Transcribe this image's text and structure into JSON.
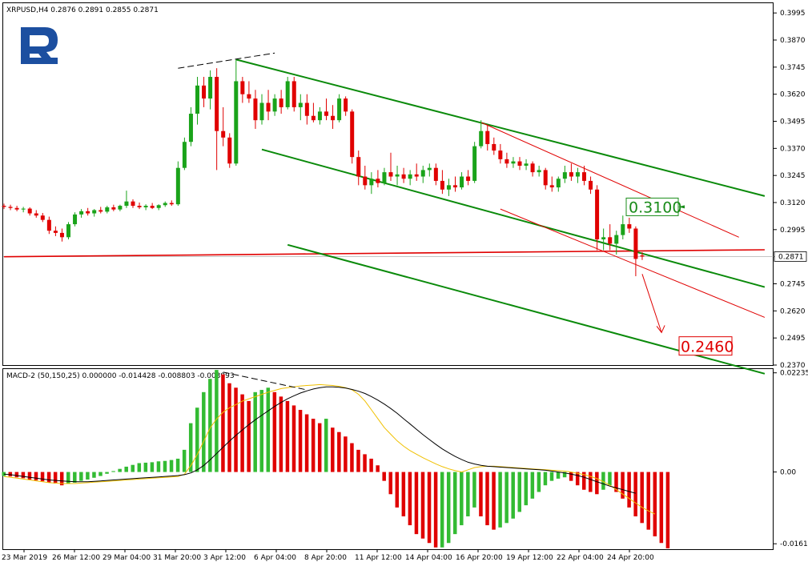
{
  "chart_data": [
    {
      "type": "candlestick",
      "title": "XRPUSD,H4",
      "ohlc_header": [
        "0.2876",
        "0.2891",
        "0.2855",
        "0.2871"
      ],
      "logo": "R",
      "ylim": [
        0.237,
        0.404
      ],
      "y_ticks": [
        "0.3995",
        "0.3870",
        "0.3745",
        "0.3620",
        "0.3495",
        "0.3370",
        "0.3245",
        "0.3120",
        "0.2995",
        "0.2870",
        "0.2745",
        "0.2620",
        "0.2495",
        "0.2370"
      ],
      "current_price": "0.2871",
      "annotations": [
        {
          "text": "0.3100",
          "value": 0.31,
          "color": "#1a8c1a"
        },
        {
          "text": "0.2460",
          "value": 0.246,
          "color": "#e00000"
        }
      ],
      "colors": {
        "bull": "#1aa31a",
        "bear": "#e00000",
        "channel": "#0a8a0a",
        "trend": "#e00000"
      },
      "candles": [
        {
          "o": 0.3105,
          "h": 0.3115,
          "l": 0.309,
          "c": 0.31
        },
        {
          "o": 0.31,
          "h": 0.311,
          "l": 0.3085,
          "c": 0.3095
        },
        {
          "o": 0.3095,
          "h": 0.3105,
          "l": 0.308,
          "c": 0.3088
        },
        {
          "o": 0.3088,
          "h": 0.31,
          "l": 0.3075,
          "c": 0.3092
        },
        {
          "o": 0.3092,
          "h": 0.3098,
          "l": 0.306,
          "c": 0.307
        },
        {
          "o": 0.307,
          "h": 0.3085,
          "l": 0.305,
          "c": 0.306
        },
        {
          "o": 0.306,
          "h": 0.3072,
          "l": 0.303,
          "c": 0.304
        },
        {
          "o": 0.304,
          "h": 0.3055,
          "l": 0.2975,
          "c": 0.299
        },
        {
          "o": 0.299,
          "h": 0.301,
          "l": 0.2965,
          "c": 0.298
        },
        {
          "o": 0.298,
          "h": 0.3,
          "l": 0.294,
          "c": 0.296
        },
        {
          "o": 0.296,
          "h": 0.303,
          "l": 0.295,
          "c": 0.302
        },
        {
          "o": 0.302,
          "h": 0.3075,
          "l": 0.301,
          "c": 0.3065
        },
        {
          "o": 0.3065,
          "h": 0.309,
          "l": 0.305,
          "c": 0.308
        },
        {
          "o": 0.308,
          "h": 0.3095,
          "l": 0.306,
          "c": 0.307
        },
        {
          "o": 0.307,
          "h": 0.309,
          "l": 0.3055,
          "c": 0.3085
        },
        {
          "o": 0.3085,
          "h": 0.31,
          "l": 0.307,
          "c": 0.3078
        },
        {
          "o": 0.3078,
          "h": 0.3105,
          "l": 0.307,
          "c": 0.3098
        },
        {
          "o": 0.3098,
          "h": 0.311,
          "l": 0.308,
          "c": 0.3088
        },
        {
          "o": 0.3088,
          "h": 0.311,
          "l": 0.308,
          "c": 0.3105
        },
        {
          "o": 0.3105,
          "h": 0.3175,
          "l": 0.3095,
          "c": 0.3125
        },
        {
          "o": 0.3125,
          "h": 0.3135,
          "l": 0.3095,
          "c": 0.3105
        },
        {
          "o": 0.3105,
          "h": 0.312,
          "l": 0.309,
          "c": 0.3098
        },
        {
          "o": 0.3098,
          "h": 0.3112,
          "l": 0.3085,
          "c": 0.3105
        },
        {
          "o": 0.3105,
          "h": 0.3118,
          "l": 0.309,
          "c": 0.3095
        },
        {
          "o": 0.3095,
          "h": 0.3112,
          "l": 0.3085,
          "c": 0.3108
        },
        {
          "o": 0.3108,
          "h": 0.3125,
          "l": 0.31,
          "c": 0.3118
        },
        {
          "o": 0.3118,
          "h": 0.313,
          "l": 0.3105,
          "c": 0.3112
        },
        {
          "o": 0.3112,
          "h": 0.331,
          "l": 0.3105,
          "c": 0.328
        },
        {
          "o": 0.328,
          "h": 0.342,
          "l": 0.327,
          "c": 0.34
        },
        {
          "o": 0.34,
          "h": 0.356,
          "l": 0.338,
          "c": 0.353
        },
        {
          "o": 0.353,
          "h": 0.37,
          "l": 0.348,
          "c": 0.366
        },
        {
          "o": 0.366,
          "h": 0.37,
          "l": 0.356,
          "c": 0.36
        },
        {
          "o": 0.36,
          "h": 0.373,
          "l": 0.355,
          "c": 0.37
        },
        {
          "o": 0.37,
          "h": 0.374,
          "l": 0.327,
          "c": 0.345
        },
        {
          "o": 0.345,
          "h": 0.356,
          "l": 0.338,
          "c": 0.342
        },
        {
          "o": 0.342,
          "h": 0.344,
          "l": 0.328,
          "c": 0.33
        },
        {
          "o": 0.33,
          "h": 0.378,
          "l": 0.329,
          "c": 0.368
        },
        {
          "o": 0.368,
          "h": 0.37,
          "l": 0.358,
          "c": 0.362
        },
        {
          "o": 0.362,
          "h": 0.368,
          "l": 0.358,
          "c": 0.36
        },
        {
          "o": 0.36,
          "h": 0.364,
          "l": 0.346,
          "c": 0.35
        },
        {
          "o": 0.35,
          "h": 0.362,
          "l": 0.348,
          "c": 0.358
        },
        {
          "o": 0.358,
          "h": 0.364,
          "l": 0.35,
          "c": 0.354
        },
        {
          "o": 0.354,
          "h": 0.362,
          "l": 0.352,
          "c": 0.36
        },
        {
          "o": 0.36,
          "h": 0.364,
          "l": 0.353,
          "c": 0.356
        },
        {
          "o": 0.356,
          "h": 0.37,
          "l": 0.355,
          "c": 0.368
        },
        {
          "o": 0.368,
          "h": 0.37,
          "l": 0.354,
          "c": 0.356
        },
        {
          "o": 0.356,
          "h": 0.362,
          "l": 0.35,
          "c": 0.358
        },
        {
          "o": 0.358,
          "h": 0.362,
          "l": 0.348,
          "c": 0.352
        },
        {
          "o": 0.352,
          "h": 0.358,
          "l": 0.349,
          "c": 0.35
        },
        {
          "o": 0.35,
          "h": 0.356,
          "l": 0.348,
          "c": 0.354
        },
        {
          "o": 0.354,
          "h": 0.36,
          "l": 0.35,
          "c": 0.352
        },
        {
          "o": 0.352,
          "h": 0.357,
          "l": 0.346,
          "c": 0.35
        },
        {
          "o": 0.35,
          "h": 0.362,
          "l": 0.349,
          "c": 0.36
        },
        {
          "o": 0.36,
          "h": 0.361,
          "l": 0.352,
          "c": 0.354
        },
        {
          "o": 0.354,
          "h": 0.355,
          "l": 0.33,
          "c": 0.333
        },
        {
          "o": 0.333,
          "h": 0.336,
          "l": 0.32,
          "c": 0.324
        },
        {
          "o": 0.324,
          "h": 0.329,
          "l": 0.318,
          "c": 0.32
        },
        {
          "o": 0.32,
          "h": 0.326,
          "l": 0.316,
          "c": 0.323
        },
        {
          "o": 0.323,
          "h": 0.327,
          "l": 0.319,
          "c": 0.321
        },
        {
          "o": 0.321,
          "h": 0.328,
          "l": 0.32,
          "c": 0.326
        },
        {
          "o": 0.326,
          "h": 0.335,
          "l": 0.322,
          "c": 0.324
        },
        {
          "o": 0.324,
          "h": 0.329,
          "l": 0.32,
          "c": 0.325
        },
        {
          "o": 0.325,
          "h": 0.328,
          "l": 0.321,
          "c": 0.323
        },
        {
          "o": 0.323,
          "h": 0.327,
          "l": 0.32,
          "c": 0.325
        },
        {
          "o": 0.325,
          "h": 0.33,
          "l": 0.322,
          "c": 0.324
        },
        {
          "o": 0.324,
          "h": 0.329,
          "l": 0.321,
          "c": 0.327
        },
        {
          "o": 0.327,
          "h": 0.33,
          "l": 0.324,
          "c": 0.328
        },
        {
          "o": 0.328,
          "h": 0.33,
          "l": 0.32,
          "c": 0.322
        },
        {
          "o": 0.322,
          "h": 0.327,
          "l": 0.316,
          "c": 0.318
        },
        {
          "o": 0.318,
          "h": 0.323,
          "l": 0.315,
          "c": 0.32
        },
        {
          "o": 0.32,
          "h": 0.324,
          "l": 0.317,
          "c": 0.319
        },
        {
          "o": 0.319,
          "h": 0.326,
          "l": 0.318,
          "c": 0.324
        },
        {
          "o": 0.324,
          "h": 0.327,
          "l": 0.32,
          "c": 0.322
        },
        {
          "o": 0.322,
          "h": 0.34,
          "l": 0.321,
          "c": 0.338
        },
        {
          "o": 0.338,
          "h": 0.35,
          "l": 0.337,
          "c": 0.345
        },
        {
          "o": 0.345,
          "h": 0.348,
          "l": 0.336,
          "c": 0.339
        },
        {
          "o": 0.339,
          "h": 0.342,
          "l": 0.334,
          "c": 0.336
        },
        {
          "o": 0.336,
          "h": 0.339,
          "l": 0.33,
          "c": 0.332
        },
        {
          "o": 0.332,
          "h": 0.335,
          "l": 0.328,
          "c": 0.33
        },
        {
          "o": 0.33,
          "h": 0.333,
          "l": 0.328,
          "c": 0.331
        },
        {
          "o": 0.331,
          "h": 0.333,
          "l": 0.327,
          "c": 0.329
        },
        {
          "o": 0.329,
          "h": 0.332,
          "l": 0.327,
          "c": 0.33
        },
        {
          "o": 0.33,
          "h": 0.331,
          "l": 0.324,
          "c": 0.326
        },
        {
          "o": 0.326,
          "h": 0.329,
          "l": 0.324,
          "c": 0.327
        },
        {
          "o": 0.327,
          "h": 0.328,
          "l": 0.318,
          "c": 0.32
        },
        {
          "o": 0.32,
          "h": 0.324,
          "l": 0.317,
          "c": 0.319
        },
        {
          "o": 0.319,
          "h": 0.324,
          "l": 0.317,
          "c": 0.323
        },
        {
          "o": 0.323,
          "h": 0.329,
          "l": 0.321,
          "c": 0.326
        },
        {
          "o": 0.326,
          "h": 0.33,
          "l": 0.322,
          "c": 0.324
        },
        {
          "o": 0.324,
          "h": 0.328,
          "l": 0.321,
          "c": 0.326
        },
        {
          "o": 0.326,
          "h": 0.329,
          "l": 0.32,
          "c": 0.322
        },
        {
          "o": 0.322,
          "h": 0.324,
          "l": 0.316,
          "c": 0.318
        },
        {
          "o": 0.318,
          "h": 0.32,
          "l": 0.29,
          "c": 0.295
        },
        {
          "o": 0.295,
          "h": 0.3,
          "l": 0.29,
          "c": 0.296
        },
        {
          "o": 0.296,
          "h": 0.302,
          "l": 0.29,
          "c": 0.293
        },
        {
          "o": 0.293,
          "h": 0.299,
          "l": 0.288,
          "c": 0.297
        },
        {
          "o": 0.297,
          "h": 0.306,
          "l": 0.295,
          "c": 0.302
        },
        {
          "o": 0.302,
          "h": 0.305,
          "l": 0.298,
          "c": 0.3
        },
        {
          "o": 0.3,
          "h": 0.301,
          "l": 0.278,
          "c": 0.286
        },
        {
          "o": 0.2876,
          "h": 0.2891,
          "l": 0.2855,
          "c": 0.2871
        }
      ],
      "upper_channel": [
        {
          "i": 36,
          "v": 0.378
        },
        {
          "i": 118,
          "v": 0.315
        }
      ],
      "mid_channel": [
        {
          "i": 40,
          "v": 0.3365
        },
        {
          "i": 118,
          "v": 0.273
        }
      ],
      "lower_channel": [
        {
          "i": 44,
          "v": 0.2925
        },
        {
          "i": 118,
          "v": 0.233
        }
      ],
      "red_upper": [
        {
          "i": 74,
          "v": 0.349
        },
        {
          "i": 114,
          "v": 0.296
        }
      ],
      "red_lower": [
        {
          "i": 77,
          "v": 0.309
        },
        {
          "i": 118,
          "v": 0.259
        }
      ],
      "horizontal_red": [
        {
          "i": 0,
          "v": 0.287
        },
        {
          "i": 118,
          "v": 0.2902
        }
      ],
      "top_dashed": [
        {
          "i": 27,
          "v": 0.374
        },
        {
          "i": 42,
          "v": 0.381
        }
      ],
      "forecast_arrow": [
        {
          "i": 99,
          "v": 0.279
        },
        {
          "i": 102,
          "v": 0.252
        }
      ]
    },
    {
      "type": "bar",
      "title": "MACD-2 (50,150,25) 0.000000 -0.014428 -0.008803 -0.003993",
      "ylim": [
        -0.0174,
        0.0232
      ],
      "y_ticks": [
        "0.022352",
        "0.00",
        "-0.01618"
      ],
      "colors": {
        "up": "#33bb33",
        "down": "#e00000",
        "signal": "#f0c000",
        "main": "#000000"
      },
      "histogram": [
        -0.0009,
        -0.001,
        -0.0012,
        -0.0014,
        -0.0017,
        -0.0019,
        -0.0021,
        -0.0024,
        -0.0026,
        -0.003,
        -0.0027,
        -0.0024,
        -0.002,
        -0.0017,
        -0.0013,
        -0.0009,
        -0.0004,
        0.0002,
        0.0007,
        0.0012,
        0.0016,
        0.002,
        0.0021,
        0.0022,
        0.0024,
        0.0025,
        0.0027,
        0.003,
        0.005,
        0.011,
        0.0145,
        0.018,
        0.021,
        0.023,
        0.022,
        0.02,
        0.019,
        0.0175,
        0.016,
        0.018,
        0.0185,
        0.019,
        0.018,
        0.017,
        0.016,
        0.015,
        0.014,
        0.013,
        0.012,
        0.011,
        0.012,
        0.01,
        0.009,
        0.008,
        0.0065,
        0.005,
        0.004,
        0.003,
        0.0015,
        -0.002,
        -0.005,
        -0.008,
        -0.01,
        -0.012,
        -0.014,
        -0.015,
        -0.016,
        -0.017,
        -0.017,
        -0.016,
        -0.014,
        -0.012,
        -0.01,
        -0.008,
        -0.01,
        -0.012,
        -0.013,
        -0.0125,
        -0.0115,
        -0.0105,
        -0.009,
        -0.0075,
        -0.006,
        -0.0045,
        -0.003,
        -0.002,
        -0.0015,
        -0.0012,
        -0.002,
        -0.003,
        -0.004,
        -0.0045,
        -0.005,
        -0.004,
        -0.003,
        -0.0045,
        -0.006,
        -0.008,
        -0.01,
        -0.0115,
        -0.013,
        -0.0145,
        -0.016,
        -0.0172
      ],
      "signal": [
        -0.001,
        -0.0012,
        -0.0014,
        -0.0016,
        -0.0018,
        -0.002,
        -0.0022,
        -0.0024,
        -0.0025,
        -0.0026,
        -0.0026,
        -0.0026,
        -0.0025,
        -0.0024,
        -0.0023,
        -0.0022,
        -0.0021,
        -0.002,
        -0.0019,
        -0.0018,
        -0.0017,
        -0.0016,
        -0.0015,
        -0.0014,
        -0.0013,
        -0.0012,
        -0.0011,
        -0.001,
        -0.0005,
        0.0015,
        0.004,
        0.007,
        0.01,
        0.012,
        0.0135,
        0.0145,
        0.0152,
        0.016,
        0.0165,
        0.017,
        0.0175,
        0.018,
        0.0184,
        0.0188,
        0.019,
        0.0192,
        0.0194,
        0.0195,
        0.0196,
        0.0197,
        0.0196,
        0.0195,
        0.0193,
        0.019,
        0.0185,
        0.0175,
        0.016,
        0.014,
        0.012,
        0.01,
        0.0085,
        0.007,
        0.0058,
        0.0048,
        0.004,
        0.0032,
        0.0025,
        0.0018,
        0.0012,
        0.0007,
        0.0003,
        0.0,
        0.0005,
        0.001,
        0.0012,
        0.0013,
        0.0013,
        0.0012,
        0.0011,
        0.001,
        0.0009,
        0.0008,
        0.0007,
        0.0006,
        0.0005,
        0.0004,
        0.0003,
        0.0002,
        0.0,
        -0.0003,
        -0.0006,
        -0.001,
        -0.0015,
        -0.0022,
        -0.003,
        -0.004,
        -0.005,
        -0.006,
        -0.007,
        -0.008,
        -0.0088,
        -0.0095
      ],
      "main": [
        -0.0005,
        -0.0006,
        -0.0008,
        -0.001,
        -0.0012,
        -0.0014,
        -0.0016,
        -0.0018,
        -0.0019,
        -0.002,
        -0.0021,
        -0.0022,
        -0.0022,
        -0.0022,
        -0.0021,
        -0.002,
        -0.0019,
        -0.0018,
        -0.0017,
        -0.0016,
        -0.0015,
        -0.0014,
        -0.0013,
        -0.0012,
        -0.0011,
        -0.001,
        -0.0009,
        -0.0008,
        -0.0006,
        -0.0002,
        0.0005,
        0.0015,
        0.0028,
        0.0042,
        0.0056,
        0.007,
        0.0083,
        0.0095,
        0.0107,
        0.0118,
        0.0128,
        0.0138,
        0.0148,
        0.0157,
        0.0165,
        0.0172,
        0.0178,
        0.0183,
        0.0187,
        0.019,
        0.0192,
        0.0192,
        0.0191,
        0.0189,
        0.0186,
        0.0182,
        0.0177,
        0.017,
        0.0162,
        0.0153,
        0.0143,
        0.0132,
        0.012,
        0.0108,
        0.0096,
        0.0084,
        0.0073,
        0.0062,
        0.0052,
        0.0043,
        0.0035,
        0.0028,
        0.0022,
        0.0018,
        0.0015,
        0.0013,
        0.0012,
        0.0011,
        0.001,
        0.0009,
        0.0008,
        0.0007,
        0.0006,
        0.0005,
        0.0004,
        0.0002,
        0.0,
        -0.0002,
        -0.0005,
        -0.0008,
        -0.0012,
        -0.0017,
        -0.0022,
        -0.0027,
        -0.0032,
        -0.0036,
        -0.004,
        -0.0044,
        -0.0048
      ],
      "top_dashed": [
        {
          "i": 34,
          "v": 0.0225
        },
        {
          "i": 47,
          "v": 0.0185
        }
      ]
    }
  ],
  "x_labels": [
    "23 Mar 2019",
    "26 Mar 12:00",
    "29 Mar 04:00",
    "31 Mar 20:00",
    "3 Apr 12:00",
    "6 Apr 04:00",
    "8 Apr 20:00",
    "11 Apr 12:00",
    "14 Apr 04:00",
    "16 Apr 20:00",
    "19 Apr 12:00",
    "22 Apr 04:00",
    "24 Apr 20:00"
  ]
}
